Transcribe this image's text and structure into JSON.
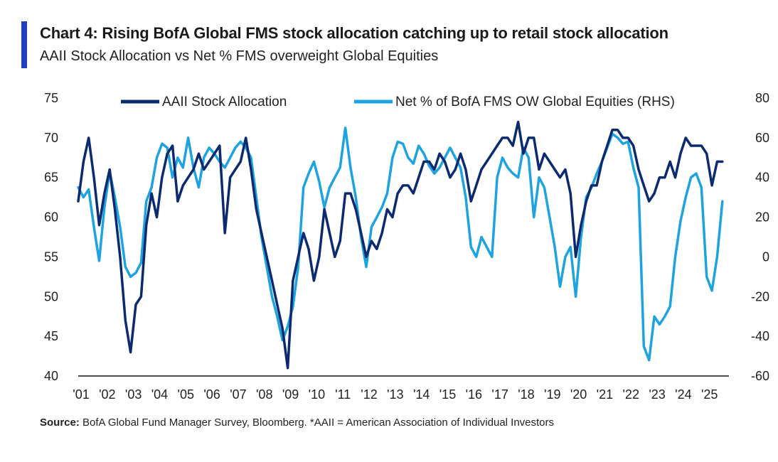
{
  "header": {
    "title": "Chart 4: Rising BofA Global FMS stock allocation catching up to retail stock allocation",
    "subtitle": "AAII Stock Allocation vs Net % FMS overweight Global Equities"
  },
  "footer": {
    "source_label": "Source:",
    "source_text": "BofA Global Fund Manager Survey, Bloomberg. *AAII = American Association of Individual Investors"
  },
  "colors": {
    "accent": "#1f3fbf",
    "aaii": "#0b2a6f",
    "fms": "#1da3e0"
  },
  "chart_data": {
    "type": "line",
    "title": "Chart 4: Rising BofA Global FMS stock allocation catching up to retail stock allocation",
    "subtitle": "AAII Stock Allocation vs Net % FMS overweight Global Equities",
    "x_ticks": [
      "'01",
      "'02",
      "'03",
      "'04",
      "'05",
      "'06",
      "'07",
      "'08",
      "'09",
      "'10",
      "'11",
      "'12",
      "'13",
      "'14",
      "'15",
      "'16",
      "'17",
      "'18",
      "'19",
      "'20",
      "'21",
      "'22",
      "'23",
      "'24",
      "'25"
    ],
    "xlim": [
      2001,
      2025.85
    ],
    "y_left": {
      "lim": [
        40,
        75
      ],
      "ticks": [
        "40",
        "45",
        "50",
        "55",
        "60",
        "65",
        "70",
        "75"
      ]
    },
    "y_right": {
      "lim": [
        -60,
        80
      ],
      "ticks": [
        "-60",
        "-40",
        "-20",
        "0",
        "20",
        "40",
        "60",
        "80"
      ]
    },
    "legend": {
      "placement": "top"
    },
    "series": [
      {
        "name": "AAII Stock Allocation",
        "axis": "left",
        "x": [
          2001.0,
          2001.2,
          2001.4,
          2001.6,
          2001.8,
          2002.0,
          2002.2,
          2002.4,
          2002.6,
          2002.8,
          2003.0,
          2003.2,
          2003.4,
          2003.6,
          2003.8,
          2004.0,
          2004.2,
          2004.4,
          2004.6,
          2004.8,
          2005.0,
          2005.2,
          2005.4,
          2005.6,
          2005.8,
          2006.0,
          2006.2,
          2006.4,
          2006.6,
          2006.8,
          2007.0,
          2007.2,
          2007.4,
          2007.6,
          2007.8,
          2008.0,
          2008.2,
          2008.4,
          2008.6,
          2008.8,
          2009.0,
          2009.2,
          2009.4,
          2009.6,
          2009.8,
          2010.0,
          2010.2,
          2010.4,
          2010.6,
          2010.8,
          2011.0,
          2011.2,
          2011.4,
          2011.6,
          2011.8,
          2012.0,
          2012.2,
          2012.4,
          2012.6,
          2012.8,
          2013.0,
          2013.2,
          2013.4,
          2013.6,
          2013.8,
          2014.0,
          2014.2,
          2014.4,
          2014.6,
          2014.8,
          2015.0,
          2015.2,
          2015.4,
          2015.6,
          2015.8,
          2016.0,
          2016.2,
          2016.4,
          2016.6,
          2016.8,
          2017.0,
          2017.2,
          2017.4,
          2017.6,
          2017.8,
          2018.0,
          2018.2,
          2018.4,
          2018.6,
          2018.8,
          2019.0,
          2019.2,
          2019.4,
          2019.6,
          2019.8,
          2020.0,
          2020.2,
          2020.4,
          2020.6,
          2020.8,
          2021.0,
          2021.2,
          2021.4,
          2021.6,
          2021.8,
          2022.0,
          2022.2,
          2022.4,
          2022.6,
          2022.8,
          2023.0,
          2023.2,
          2023.4,
          2023.6,
          2023.8,
          2024.0,
          2024.2,
          2024.4,
          2024.6,
          2024.8,
          2025.0,
          2025.2,
          2025.4,
          2025.6
        ],
        "values": [
          62,
          67,
          70,
          65,
          59,
          63,
          66,
          61,
          55,
          47,
          43,
          49,
          50,
          59,
          63,
          60,
          65,
          68,
          69,
          62,
          64,
          65,
          66,
          68,
          66,
          67,
          68,
          69,
          58,
          65,
          66,
          67,
          70,
          66,
          61,
          58,
          55,
          52,
          49,
          46,
          41,
          52,
          55,
          58,
          56,
          52,
          55,
          61,
          58,
          55,
          57,
          63,
          63,
          61,
          58,
          55,
          57,
          56,
          58,
          61,
          60,
          63,
          64,
          64,
          63,
          65,
          67,
          67,
          66,
          68,
          67,
          65,
          66,
          68,
          66,
          62,
          64,
          66,
          67,
          68,
          69,
          70,
          70,
          69,
          72,
          68,
          70,
          70,
          66,
          68,
          67,
          66,
          65,
          66,
          63,
          55,
          59,
          62,
          64,
          64,
          67,
          69,
          71,
          71,
          70,
          70,
          69,
          66,
          64,
          62,
          63,
          65,
          65,
          67,
          65,
          68,
          70,
          69,
          69,
          69,
          68,
          64,
          67,
          67
        ]
      },
      {
        "name": "Net % of BofA FMS OW Global Equities (RHS)",
        "axis": "right",
        "x": [
          2001.0,
          2001.2,
          2001.4,
          2001.6,
          2001.8,
          2002.0,
          2002.2,
          2002.4,
          2002.6,
          2002.8,
          2003.0,
          2003.2,
          2003.4,
          2003.6,
          2003.8,
          2004.0,
          2004.2,
          2004.4,
          2004.6,
          2004.8,
          2005.0,
          2005.2,
          2005.4,
          2005.6,
          2005.8,
          2006.0,
          2006.2,
          2006.4,
          2006.6,
          2006.8,
          2007.0,
          2007.2,
          2007.4,
          2007.6,
          2007.8,
          2008.0,
          2008.2,
          2008.4,
          2008.6,
          2008.8,
          2009.0,
          2009.2,
          2009.4,
          2009.6,
          2009.8,
          2010.0,
          2010.2,
          2010.4,
          2010.6,
          2010.8,
          2011.0,
          2011.2,
          2011.4,
          2011.6,
          2011.8,
          2012.0,
          2012.2,
          2012.4,
          2012.6,
          2012.8,
          2013.0,
          2013.2,
          2013.4,
          2013.6,
          2013.8,
          2014.0,
          2014.2,
          2014.4,
          2014.6,
          2014.8,
          2015.0,
          2015.2,
          2015.4,
          2015.6,
          2015.8,
          2016.0,
          2016.2,
          2016.4,
          2016.6,
          2016.8,
          2017.0,
          2017.2,
          2017.4,
          2017.6,
          2017.8,
          2018.0,
          2018.2,
          2018.4,
          2018.6,
          2018.8,
          2019.0,
          2019.2,
          2019.4,
          2019.6,
          2019.8,
          2020.0,
          2020.2,
          2020.4,
          2020.6,
          2020.8,
          2021.0,
          2021.2,
          2021.4,
          2021.6,
          2021.8,
          2022.0,
          2022.2,
          2022.4,
          2022.6,
          2022.8,
          2023.0,
          2023.2,
          2023.4,
          2023.6,
          2023.8,
          2024.0,
          2024.2,
          2024.4,
          2024.6,
          2024.8,
          2025.0,
          2025.2,
          2025.4,
          2025.6
        ],
        "values": [
          35,
          30,
          34,
          15,
          -2,
          25,
          43,
          30,
          15,
          -5,
          -10,
          -8,
          -3,
          28,
          35,
          50,
          57,
          55,
          40,
          50,
          45,
          60,
          45,
          35,
          50,
          55,
          52,
          48,
          45,
          50,
          55,
          58,
          55,
          50,
          30,
          10,
          -5,
          -20,
          -30,
          -42,
          -35,
          -25,
          -5,
          35,
          42,
          48,
          38,
          25,
          35,
          40,
          45,
          65,
          45,
          30,
          10,
          -5,
          15,
          20,
          25,
          32,
          50,
          58,
          57,
          50,
          47,
          56,
          52,
          46,
          42,
          45,
          50,
          55,
          50,
          45,
          30,
          5,
          0,
          10,
          5,
          0,
          40,
          50,
          45,
          42,
          40,
          55,
          50,
          20,
          40,
          35,
          20,
          5,
          -15,
          0,
          5,
          -20,
          10,
          30,
          35,
          42,
          48,
          55,
          62,
          60,
          57,
          58,
          45,
          35,
          -45,
          -52,
          -30,
          -34,
          -30,
          -25,
          0,
          18,
          30,
          40,
          42,
          35,
          -10,
          -17,
          0,
          28
        ]
      }
    ]
  }
}
